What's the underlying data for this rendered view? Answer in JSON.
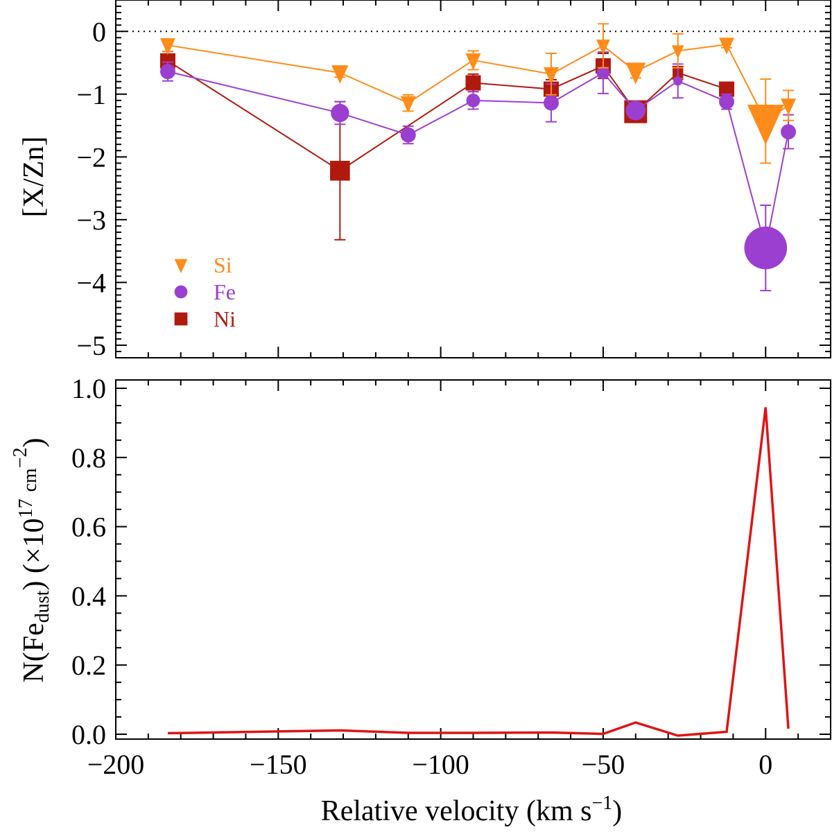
{
  "chart_data": [
    {
      "type": "scatter",
      "panel": "top",
      "ylabel": "[X/Zn]",
      "xlim": [
        -200,
        20
      ],
      "ylim": [
        -5.2,
        0.5
      ],
      "x_ticks": [
        -200,
        -150,
        -100,
        -50,
        0
      ],
      "y_ticks": [
        0,
        -1,
        -2,
        -3,
        -4,
        -5
      ],
      "y_tick_labels": [
        "0",
        "−1",
        "−2",
        "−3",
        "−4",
        "−5"
      ],
      "reference_line": {
        "y": 0,
        "style": "dotted"
      },
      "legend": {
        "position": "bottom-left",
        "entries": [
          {
            "label": "Si",
            "marker": "triangle-down",
            "color": "#FF8C1A"
          },
          {
            "label": "Fe",
            "marker": "circle",
            "color": "#9B3FD1"
          },
          {
            "label": "Ni",
            "marker": "square",
            "color": "#B01A0E"
          }
        ]
      },
      "series": [
        {
          "name": "Si",
          "marker": "triangle-down",
          "color": "#FF8C1A",
          "x": [
            -184,
            -131,
            -110,
            -90,
            -66,
            -50,
            -40,
            -27,
            -12,
            0,
            7
          ],
          "y": [
            -0.22,
            -0.66,
            -1.14,
            -0.46,
            -0.68,
            -0.23,
            -0.64,
            -0.31,
            -0.21,
            -1.43,
            -1.18
          ],
          "err": [
            0.1,
            0.07,
            0.13,
            0.15,
            0.33,
            0.35,
            0.1,
            0.27,
            0.05,
            0.67,
            0.24
          ],
          "size": [
            1,
            1.1,
            1,
            1,
            1,
            0.9,
            1.3,
            0.8,
            1,
            2.4,
            1
          ]
        },
        {
          "name": "Fe",
          "marker": "circle",
          "color": "#9B3FD1",
          "x": [
            -184,
            -131,
            -110,
            -90,
            -66,
            -50,
            -40,
            -27,
            -12,
            0,
            7
          ],
          "y": [
            -0.64,
            -1.3,
            -1.65,
            -1.1,
            -1.14,
            -0.66,
            -1.26,
            -0.79,
            -1.12,
            -3.45,
            -1.6
          ],
          "err": [
            0.15,
            0.18,
            0.14,
            0.14,
            0.3,
            0.33,
            0.1,
            0.27,
            0.12,
            0.68,
            0.27
          ],
          "size": [
            1,
            1.2,
            1,
            0.9,
            1,
            0.85,
            1.3,
            0.6,
            1,
            2.8,
            1
          ]
        },
        {
          "name": "Ni",
          "marker": "square",
          "color": "#B01A0E",
          "x": [
            -184,
            -131,
            -90,
            -66,
            -50,
            -40,
            -27,
            -12
          ],
          "y": [
            -0.47,
            -2.22,
            -0.82,
            -0.92,
            -0.55,
            -1.28,
            -0.66,
            -0.92
          ],
          "err": [
            0.15,
            1.1,
            0.14,
            0.15,
            0.2,
            0.12,
            0.1,
            0.1
          ],
          "size": [
            1,
            1.3,
            1,
            1,
            1,
            1.5,
            0.7,
            1
          ]
        }
      ]
    },
    {
      "type": "line",
      "panel": "bottom",
      "xlabel_main": "Relative velocity (km s",
      "xlabel_sup": "−1",
      "xlabel_close": ")",
      "ylabel_parts": {
        "a": "N(Fe",
        "sub": "dust",
        "b": ") (×10",
        "sup1": "17",
        "c": "cm",
        "sup2": "−2",
        "d": ")"
      },
      "xlim": [
        -200,
        20
      ],
      "ylim": [
        -0.01,
        1.0
      ],
      "x_ticks": [
        -200,
        -150,
        -100,
        -50,
        0
      ],
      "x_tick_labels": [
        "−200",
        "−150",
        "−100",
        "−50",
        "0"
      ],
      "y_ticks": [
        0.0,
        0.2,
        0.4,
        0.6,
        0.8,
        1.0
      ],
      "y_tick_labels": [
        "0.0",
        "0.2",
        "0.4",
        "0.6",
        "0.8",
        "1.0"
      ],
      "series": [
        {
          "name": "N(Fe_dust)",
          "color": "#DD1515",
          "x": [
            -184,
            -131,
            -110,
            -90,
            -66,
            -50,
            -40,
            -27,
            -12,
            0,
            7
          ],
          "y": [
            0.003,
            0.011,
            0.004,
            0.004,
            0.005,
            0.001,
            0.034,
            -0.004,
            0.007,
            0.945,
            0.016
          ]
        }
      ]
    }
  ]
}
